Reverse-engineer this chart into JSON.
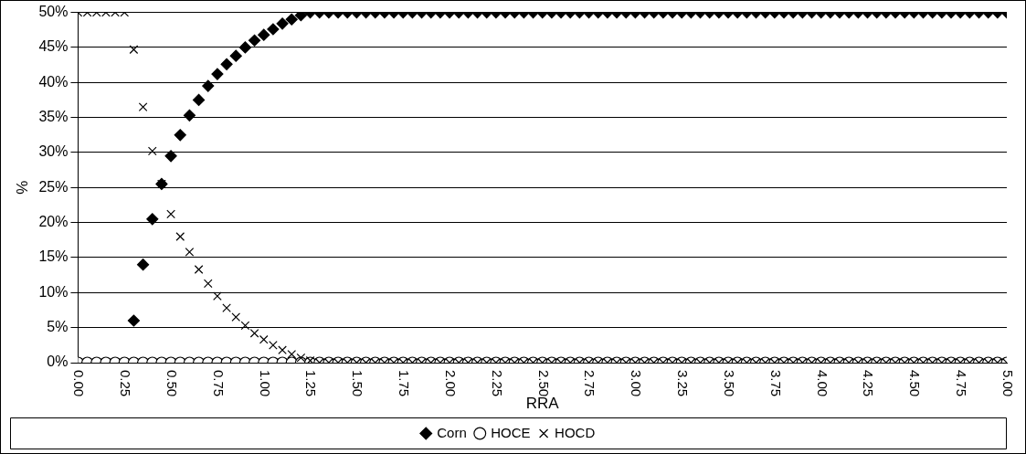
{
  "chart_data": {
    "type": "scatter",
    "xlabel": "RRA",
    "ylabel": "%",
    "x": [
      0,
      0.05,
      0.1,
      0.15,
      0.2,
      0.25,
      0.3,
      0.35,
      0.4,
      0.45,
      0.5,
      0.55,
      0.6,
      0.65,
      0.7,
      0.75,
      0.8,
      0.85,
      0.9,
      0.95,
      1,
      1.05,
      1.1,
      1.15,
      1.2,
      1.25,
      1.3,
      1.35,
      1.4,
      1.45,
      1.5,
      1.55,
      1.6,
      1.65,
      1.7,
      1.75,
      1.8,
      1.85,
      1.9,
      1.95,
      2,
      2.05,
      2.1,
      2.15,
      2.2,
      2.25,
      2.3,
      2.35,
      2.4,
      2.45,
      2.5,
      2.55,
      2.6,
      2.65,
      2.7,
      2.75,
      2.8,
      2.85,
      2.9,
      2.95,
      3,
      3.05,
      3.1,
      3.15,
      3.2,
      3.25,
      3.3,
      3.35,
      3.4,
      3.45,
      3.5,
      3.55,
      3.6,
      3.65,
      3.7,
      3.75,
      3.8,
      3.85,
      3.9,
      3.95,
      4,
      4.05,
      4.1,
      4.15,
      4.2,
      4.25,
      4.3,
      4.35,
      4.4,
      4.45,
      4.5,
      4.55,
      4.6,
      4.65,
      4.7,
      4.75,
      4.8,
      4.85,
      4.9,
      4.95,
      5
    ],
    "series": [
      {
        "name": "Corn",
        "color": "#000000",
        "marker": "diamond",
        "values": [
          null,
          null,
          null,
          null,
          null,
          null,
          6,
          14,
          20.5,
          25.5,
          29.5,
          32.5,
          35.3,
          37.5,
          39.5,
          41.2,
          42.6,
          43.8,
          45,
          46,
          46.8,
          47.6,
          48.4,
          49,
          49.6,
          50,
          50,
          50,
          50,
          50,
          50,
          50,
          50,
          50,
          50,
          50,
          50,
          50,
          50,
          50,
          50,
          50,
          50,
          50,
          50,
          50,
          50,
          50,
          50,
          50,
          50,
          50,
          50,
          50,
          50,
          50,
          50,
          50,
          50,
          50,
          50,
          50,
          50,
          50,
          50,
          50,
          50,
          50,
          50,
          50,
          50,
          50,
          50,
          50,
          50,
          50,
          50,
          50,
          50,
          50,
          50,
          50,
          50,
          50,
          50,
          50,
          50,
          50,
          50,
          50,
          50,
          50,
          50,
          50,
          50,
          50,
          50,
          50,
          50,
          50,
          50
        ]
      },
      {
        "name": "HOCE",
        "color": "#000000",
        "marker": "circle",
        "values": [
          0,
          0,
          0,
          0,
          0,
          0,
          0,
          0,
          0,
          0,
          0,
          0,
          0,
          0,
          0,
          0,
          0,
          0,
          0,
          0,
          0,
          0,
          0,
          0,
          0,
          0,
          0,
          0,
          0,
          0,
          0,
          0,
          0,
          0,
          0,
          0,
          0,
          0,
          0,
          0,
          0,
          0,
          0,
          0,
          0,
          0,
          0,
          0,
          0,
          0,
          0,
          0,
          0,
          0,
          0,
          0,
          0,
          0,
          0,
          0,
          0,
          0,
          0,
          0,
          0,
          0,
          0,
          0,
          0,
          0,
          0,
          0,
          0,
          0,
          0,
          0,
          0,
          0,
          0,
          0,
          0,
          0,
          0,
          0,
          0,
          0,
          0,
          0,
          0,
          0,
          0,
          0,
          0,
          0,
          0,
          0,
          0,
          0,
          0,
          0,
          0
        ]
      },
      {
        "name": "HOCD",
        "color": "#000000",
        "marker": "cross",
        "values": [
          50,
          50,
          50,
          50,
          50,
          50,
          44.7,
          36.5,
          30.2,
          25.5,
          21.2,
          18,
          15.8,
          13.3,
          11.3,
          9.5,
          7.8,
          6.5,
          5.3,
          4.2,
          3.3,
          2.5,
          1.8,
          1.2,
          0.7,
          0.3,
          0,
          0,
          0,
          0,
          0,
          0,
          0,
          0,
          0,
          0,
          0,
          0,
          0,
          0,
          0,
          0,
          0,
          0,
          0,
          0,
          0,
          0,
          0,
          0,
          0,
          0,
          0,
          0,
          0,
          0,
          0,
          0,
          0,
          0,
          0,
          0,
          0,
          0,
          0,
          0,
          0,
          0,
          0,
          0,
          0,
          0,
          0,
          0,
          0,
          0,
          0,
          0,
          0,
          0,
          0,
          0,
          0,
          0,
          0,
          0,
          0,
          0,
          0,
          0,
          0,
          0,
          0,
          0,
          0,
          0,
          0,
          0,
          0,
          0,
          0
        ]
      }
    ],
    "xlim": [
      0,
      5
    ],
    "xticks": [
      {
        "value": 0,
        "label": "0.00"
      },
      {
        "value": 0.25,
        "label": "0.25"
      },
      {
        "value": 0.5,
        "label": "0.50"
      },
      {
        "value": 0.75,
        "label": "0.75"
      },
      {
        "value": 1,
        "label": "1.00"
      },
      {
        "value": 1.25,
        "label": "1.25"
      },
      {
        "value": 1.5,
        "label": "1.50"
      },
      {
        "value": 1.75,
        "label": "1.75"
      },
      {
        "value": 2,
        "label": "2.00"
      },
      {
        "value": 2.25,
        "label": "2.25"
      },
      {
        "value": 2.5,
        "label": "2.50"
      },
      {
        "value": 2.75,
        "label": "2.75"
      },
      {
        "value": 3,
        "label": "3.00"
      },
      {
        "value": 3.25,
        "label": "3.25"
      },
      {
        "value": 3.5,
        "label": "3.50"
      },
      {
        "value": 3.75,
        "label": "3.75"
      },
      {
        "value": 4,
        "label": "4.00"
      },
      {
        "value": 4.25,
        "label": "4.25"
      },
      {
        "value": 4.5,
        "label": "4.50"
      },
      {
        "value": 4.75,
        "label": "4.75"
      },
      {
        "value": 5,
        "label": "5.00"
      }
    ],
    "ylim": [
      0,
      50
    ],
    "yticks": [
      {
        "value": 0,
        "label": "0%"
      },
      {
        "value": 5,
        "label": "5%"
      },
      {
        "value": 10,
        "label": "10%"
      },
      {
        "value": 15,
        "label": "15%"
      },
      {
        "value": 20,
        "label": "20%"
      },
      {
        "value": 25,
        "label": "25%"
      },
      {
        "value": 30,
        "label": "30%"
      },
      {
        "value": 35,
        "label": "35%"
      },
      {
        "value": 40,
        "label": "40%"
      },
      {
        "value": 45,
        "label": "45%"
      },
      {
        "value": 50,
        "label": "50%"
      }
    ],
    "grid": "y",
    "legend": "bottom"
  }
}
